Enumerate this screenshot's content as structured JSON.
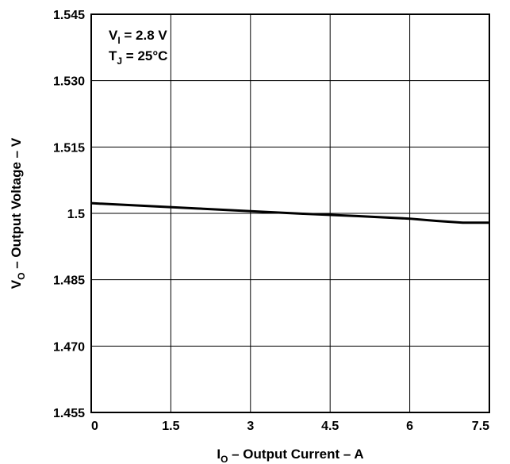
{
  "chart_data": {
    "type": "line",
    "x_axis": {
      "label_main": "I",
      "label_sub": "O",
      "label_rest": " – Output Current – A",
      "range": [
        0,
        7.5
      ],
      "ticks": [
        0,
        1.5,
        3,
        4.5,
        6,
        7.5
      ],
      "tick_labels": [
        "0",
        "1.5",
        "3",
        "4.5",
        "6",
        "7.5"
      ]
    },
    "y_axis": {
      "label_main": "V",
      "label_sub": "O",
      "label_rest": " – Output Voltage – V",
      "range": [
        1.455,
        1.545
      ],
      "ticks": [
        1.455,
        1.47,
        1.485,
        1.5,
        1.515,
        1.53,
        1.545
      ],
      "tick_labels": [
        "1.455",
        "1.470",
        "1.485",
        "1.5",
        "1.515",
        "1.530",
        "1.545"
      ]
    },
    "grid": true,
    "annotations": [
      {
        "main": "V",
        "sub": "I",
        "rest": " = 2.8 V"
      },
      {
        "main": "T",
        "sub": "J",
        "rest": " = 25°C"
      }
    ],
    "series": [
      {
        "x": [
          0,
          1,
          2,
          3,
          4,
          5,
          6,
          6.5,
          7,
          7.5
        ],
        "y": [
          1.5023,
          1.5017,
          1.5011,
          1.5005,
          1.4999,
          1.4994,
          1.4988,
          1.4983,
          1.4979,
          1.4979
        ]
      }
    ]
  }
}
